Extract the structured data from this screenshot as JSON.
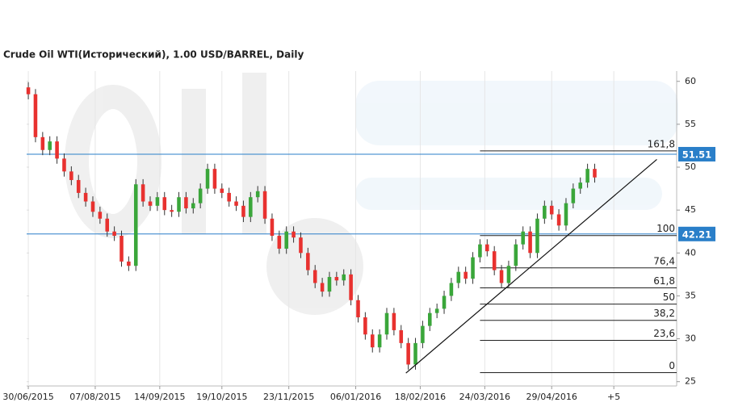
{
  "chart_data": {
    "type": "candlestick",
    "title": "Crude Oil WTI(Исторический), 1.00 USD/BARREL, Daily",
    "x": [
      0,
      3,
      6,
      9,
      12,
      15,
      18,
      21,
      24,
      27,
      30,
      33,
      36,
      39,
      42,
      45,
      48,
      51,
      54,
      57,
      60,
      63,
      66,
      69,
      72,
      75,
      78,
      81,
      84,
      87,
      90,
      93,
      96,
      99,
      102,
      105,
      108,
      111,
      114,
      117,
      120,
      123,
      126,
      129,
      132,
      135,
      138,
      141,
      144,
      147,
      150,
      153,
      156,
      159,
      162,
      165,
      168,
      171,
      174,
      177,
      180,
      183,
      186,
      189,
      192,
      195,
      198,
      201,
      204,
      207,
      210,
      213,
      216,
      219,
      222,
      225,
      228,
      231,
      234,
      237
    ],
    "open": [
      59.3,
      58.5,
      53.5,
      52.0,
      53.0,
      51.0,
      49.5,
      48.5,
      47.0,
      46.0,
      44.8,
      44.0,
      42.5,
      42.0,
      39.0,
      38.5,
      48.0,
      46.0,
      45.5,
      46.5,
      45.0,
      44.8,
      46.5,
      45.2,
      45.8,
      47.5,
      49.8,
      47.5,
      47.0,
      46.0,
      45.5,
      44.2,
      46.5,
      47.2,
      44.0,
      42.0,
      40.5,
      42.5,
      41.8,
      40.0,
      38.0,
      36.5,
      35.5,
      37.2,
      36.8,
      37.5,
      34.5,
      32.5,
      30.5,
      29.0,
      30.5,
      33.0,
      31.0,
      29.5,
      27.0,
      29.5,
      31.5,
      33.0,
      33.5,
      35.0,
      36.5,
      37.8,
      37.0,
      39.5,
      41.0,
      40.2,
      38.0,
      36.5,
      38.5,
      41.0,
      42.5,
      40.0,
      44.0,
      45.5,
      44.5,
      43.2,
      45.8,
      47.5,
      48.2,
      49.8
    ],
    "high": [
      59.9,
      59.1,
      54.1,
      53.6,
      53.6,
      51.6,
      50.1,
      49.1,
      47.6,
      46.6,
      45.4,
      44.6,
      43.1,
      42.6,
      39.6,
      48.6,
      48.6,
      46.6,
      47.1,
      47.1,
      45.6,
      47.1,
      47.1,
      46.4,
      48.1,
      50.4,
      50.4,
      48.1,
      47.6,
      46.6,
      46.1,
      47.1,
      47.8,
      47.8,
      44.6,
      42.6,
      43.1,
      43.1,
      42.4,
      40.6,
      38.6,
      37.1,
      37.8,
      37.8,
      38.1,
      38.1,
      35.1,
      33.1,
      31.1,
      31.1,
      33.6,
      33.6,
      31.6,
      30.1,
      30.1,
      32.1,
      33.6,
      34.1,
      35.6,
      37.1,
      38.4,
      38.4,
      40.1,
      41.6,
      41.6,
      40.8,
      38.6,
      39.1,
      41.6,
      43.1,
      43.1,
      44.6,
      46.1,
      46.1,
      45.1,
      46.4,
      48.1,
      48.8,
      50.4,
      50.4
    ],
    "low": [
      57.9,
      52.9,
      51.4,
      51.4,
      50.4,
      48.9,
      47.9,
      46.4,
      45.4,
      44.2,
      43.4,
      41.9,
      41.4,
      38.4,
      37.9,
      37.9,
      45.4,
      44.9,
      44.9,
      44.4,
      44.2,
      44.2,
      44.6,
      44.6,
      45.2,
      46.9,
      46.9,
      46.4,
      45.4,
      44.9,
      43.6,
      43.6,
      45.9,
      43.4,
      41.4,
      39.9,
      39.9,
      41.2,
      39.4,
      37.4,
      35.9,
      34.9,
      34.9,
      36.2,
      36.2,
      33.9,
      31.9,
      29.9,
      28.4,
      28.4,
      29.9,
      30.4,
      28.9,
      26.4,
      26.4,
      28.9,
      30.9,
      32.4,
      32.9,
      34.4,
      35.9,
      36.4,
      36.4,
      38.9,
      39.6,
      37.4,
      35.9,
      35.9,
      37.9,
      40.4,
      39.4,
      39.4,
      43.4,
      43.9,
      42.6,
      42.6,
      45.2,
      46.9,
      47.6,
      48.2
    ],
    "close": [
      58.5,
      53.5,
      52.0,
      53.0,
      51.0,
      49.5,
      48.5,
      47.0,
      46.0,
      44.8,
      44.0,
      42.5,
      42.0,
      39.0,
      38.5,
      48.0,
      46.0,
      45.5,
      46.5,
      45.0,
      44.8,
      46.5,
      45.2,
      45.8,
      47.5,
      49.8,
      47.5,
      47.0,
      46.0,
      45.5,
      44.2,
      46.5,
      47.2,
      44.0,
      42.0,
      40.5,
      42.5,
      41.8,
      40.0,
      38.0,
      36.5,
      35.5,
      37.2,
      36.8,
      37.5,
      34.5,
      32.5,
      30.5,
      29.0,
      30.5,
      33.0,
      31.0,
      29.5,
      27.0,
      29.5,
      31.5,
      33.0,
      33.5,
      35.0,
      36.5,
      37.8,
      37.0,
      39.5,
      41.0,
      40.2,
      38.0,
      36.5,
      38.5,
      41.0,
      42.5,
      40.0,
      44.0,
      45.5,
      44.5,
      43.2,
      45.8,
      47.5,
      48.2,
      49.8,
      48.8
    ],
    "up_color": "#3aa63a",
    "down_color": "#e8312f",
    "xlim": [
      -0.7,
      271.3
    ],
    "xticks": [
      {
        "value": 0,
        "label": "30/06/2015"
      },
      {
        "value": 28,
        "label": "07/08/2015"
      },
      {
        "value": 55,
        "label": "14/09/2015"
      },
      {
        "value": 81,
        "label": "19/10/2015"
      },
      {
        "value": 109,
        "label": "23/11/2015"
      },
      {
        "value": 137,
        "label": "06/01/2016"
      },
      {
        "value": 164,
        "label": "18/02/2016"
      },
      {
        "value": 191,
        "label": "24/03/2016"
      },
      {
        "value": 219,
        "label": "29/04/2016"
      },
      {
        "value": 245,
        "label": "+5"
      }
    ],
    "ylim": [
      24.5,
      61.2
    ],
    "yticks": [
      25,
      30,
      35,
      40,
      45,
      50,
      55,
      60
    ],
    "grid": true,
    "hlines": [
      51.51,
      42.21
    ],
    "hline_color": "#2a7fc9",
    "fib_start_x": 189,
    "fib_levels": [
      {
        "label": "161,8",
        "value": 51.9
      },
      {
        "label": "100",
        "value": 42.03
      },
      {
        "label": "76,4",
        "value": 38.26
      },
      {
        "label": "61,8",
        "value": 35.93
      },
      {
        "label": "50",
        "value": 34.04
      },
      {
        "label": "38,2",
        "value": 32.15
      },
      {
        "label": "23,6",
        "value": 29.82
      },
      {
        "label": "0",
        "value": 26.05
      }
    ],
    "trendline": {
      "x": [
        158,
        263
      ],
      "y": [
        26.0,
        50.9
      ]
    }
  }
}
